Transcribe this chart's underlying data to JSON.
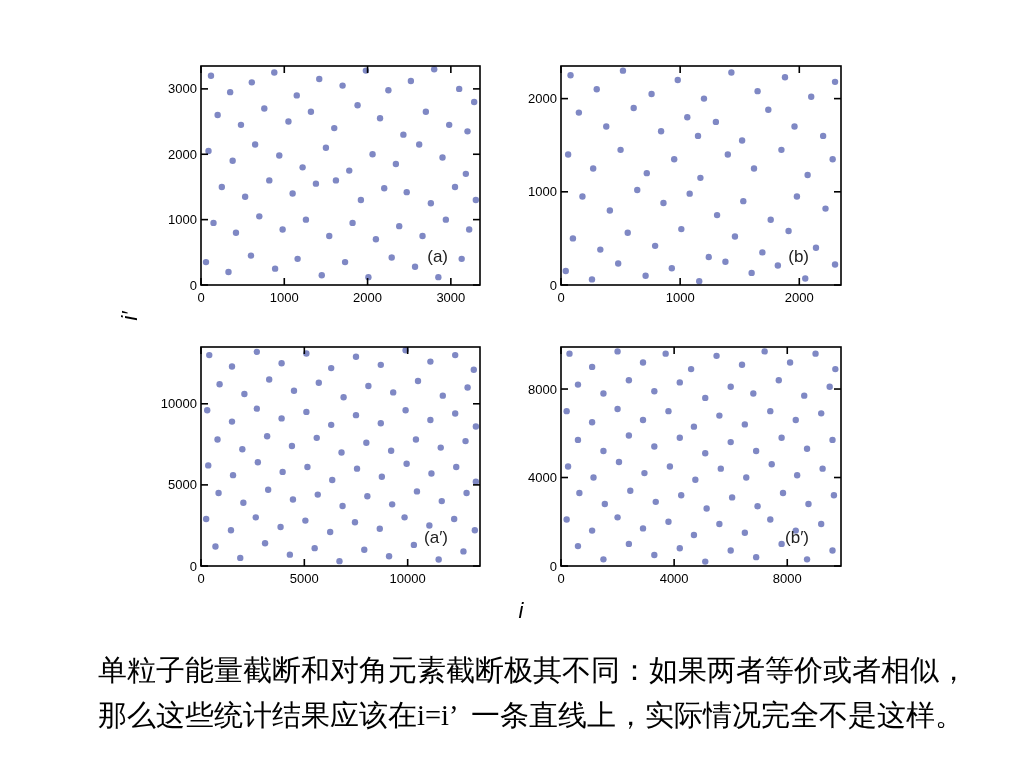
{
  "chart_data": [
    {
      "type": "scatter",
      "title": "(a)",
      "ylabel": "i′",
      "color": "#7f88c4",
      "marker": "circle",
      "xlim": [
        0,
        3350
      ],
      "ylim": [
        0,
        3350
      ],
      "xticks": [
        0,
        1000,
        2000,
        3000
      ],
      "yticks": [
        0,
        1000,
        2000,
        3000
      ],
      "x": [
        120,
        350,
        610,
        880,
        1150,
        1420,
        1700,
        1980,
        2250,
        2520,
        2800,
        3100,
        3280,
        200,
        480,
        760,
        1050,
        1320,
        1600,
        1880,
        2150,
        2430,
        2700,
        2980,
        3200,
        90,
        380,
        650,
        940,
        1220,
        1500,
        1780,
        2060,
        2340,
        2620,
        2900,
        3180,
        250,
        530,
        820,
        1100,
        1380,
        1620,
        1920,
        2200,
        2470,
        2760,
        3050,
        3300,
        150,
        420,
        700,
        980,
        1260,
        1540,
        1820,
        2100,
        2380,
        2660,
        2940,
        3220,
        60,
        330,
        600,
        890,
        1160,
        1450,
        1730,
        2010,
        2290,
        2570,
        2850,
        3130
      ],
      "values": [
        3200,
        2950,
        3100,
        3250,
        2900,
        3150,
        3050,
        3280,
        2980,
        3120,
        3300,
        3000,
        2800,
        2600,
        2450,
        2700,
        2500,
        2650,
        2400,
        2750,
        2550,
        2300,
        2650,
        2450,
        2350,
        2050,
        1900,
        2150,
        1980,
        1800,
        2100,
        1750,
        2000,
        1850,
        2150,
        1950,
        1700,
        1500,
        1350,
        1600,
        1400,
        1550,
        1600,
        1300,
        1480,
        1420,
        1250,
        1500,
        1300,
        950,
        800,
        1050,
        850,
        1000,
        750,
        950,
        700,
        900,
        750,
        1000,
        850,
        350,
        200,
        450,
        250,
        400,
        150,
        350,
        120,
        420,
        280,
        120,
        400
      ]
    },
    {
      "type": "scatter",
      "title": "(b)",
      "color": "#7f88c4",
      "marker": "circle",
      "xlim": [
        0,
        2350
      ],
      "ylim": [
        0,
        2350
      ],
      "xticks": [
        0,
        1000,
        2000
      ],
      "yticks": [
        0,
        1000,
        2000
      ],
      "x": [
        80,
        300,
        520,
        760,
        980,
        1200,
        1430,
        1650,
        1880,
        2100,
        2300,
        150,
        380,
        610,
        840,
        1060,
        1150,
        1300,
        1520,
        1740,
        1960,
        2200,
        60,
        270,
        500,
        720,
        950,
        1170,
        1400,
        1620,
        1850,
        2070,
        2280,
        180,
        410,
        640,
        860,
        1080,
        1310,
        1530,
        1760,
        1980,
        2220,
        100,
        330,
        560,
        790,
        1010,
        1240,
        1460,
        1690,
        1910,
        2140,
        40,
        260,
        480,
        710,
        930,
        1160,
        1380,
        1600,
        1820,
        2050,
        2300
      ],
      "values": [
        2250,
        2100,
        2300,
        2050,
        2200,
        2000,
        2280,
        2080,
        2230,
        2020,
        2180,
        1850,
        1700,
        1900,
        1650,
        1800,
        1600,
        1750,
        1550,
        1880,
        1700,
        1600,
        1400,
        1250,
        1450,
        1200,
        1350,
        1150,
        1400,
        1250,
        1450,
        1180,
        1350,
        950,
        800,
        1020,
        880,
        980,
        750,
        900,
        700,
        950,
        820,
        500,
        380,
        560,
        420,
        600,
        300,
        520,
        350,
        580,
        400,
        150,
        60,
        230,
        100,
        180,
        40,
        250,
        130,
        210,
        70,
        220
      ]
    },
    {
      "type": "scatter",
      "title": "(a′)",
      "xlabel": "i",
      "color": "#7f88c4",
      "marker": "circle",
      "xlim": [
        0,
        13500
      ],
      "ylim": [
        0,
        13500
      ],
      "xticks": [
        0,
        5000,
        10000
      ],
      "yticks": [
        0,
        5000,
        10000
      ],
      "x": [
        400,
        1500,
        2700,
        3900,
        5100,
        6300,
        7500,
        8700,
        9900,
        11100,
        12300,
        13200,
        900,
        2100,
        3300,
        4500,
        5700,
        6900,
        8100,
        9300,
        10500,
        11700,
        12900,
        300,
        1500,
        2700,
        3900,
        5100,
        6300,
        7500,
        8700,
        9900,
        11100,
        12300,
        13300,
        800,
        2000,
        3200,
        4400,
        5600,
        6800,
        8000,
        9200,
        10400,
        11600,
        12800,
        350,
        1550,
        2750,
        3950,
        5150,
        6350,
        7550,
        8750,
        9950,
        11150,
        12350,
        13300,
        850,
        2050,
        3250,
        4450,
        5650,
        6850,
        8050,
        9250,
        10450,
        11650,
        12850,
        250,
        1450,
        2650,
        3850,
        5050,
        6250,
        7450,
        8650,
        9850,
        11050,
        12250,
        13250,
        700,
        1900,
        3100,
        4300,
        5500,
        6700,
        7900,
        9100,
        10300,
        11500,
        12700
      ],
      "values": [
        13000,
        12300,
        13200,
        12500,
        13100,
        12200,
        12900,
        12400,
        13300,
        12600,
        13000,
        12100,
        11200,
        10600,
        11500,
        10800,
        11300,
        10400,
        11100,
        10700,
        11400,
        10500,
        11000,
        9600,
        8900,
        9700,
        9100,
        9500,
        8700,
        9300,
        8800,
        9600,
        9000,
        9400,
        8600,
        7800,
        7200,
        8000,
        7400,
        7900,
        7000,
        7600,
        7100,
        7800,
        7300,
        7700,
        6200,
        5600,
        6400,
        5800,
        6100,
        5300,
        6000,
        5500,
        6300,
        5700,
        6100,
        5200,
        4500,
        3900,
        4700,
        4100,
        4400,
        3700,
        4300,
        3800,
        4600,
        4000,
        4500,
        2900,
        2200,
        3000,
        2400,
        2800,
        2100,
        2700,
        2300,
        3000,
        2500,
        2900,
        2200,
        1200,
        500,
        1400,
        700,
        1100,
        300,
        1000,
        600,
        1300,
        400,
        900
      ]
    },
    {
      "type": "scatter",
      "title": "(b′)",
      "color": "#7f88c4",
      "marker": "circle",
      "xlim": [
        0,
        9900
      ],
      "ylim": [
        0,
        9900
      ],
      "xticks": [
        0,
        4000,
        8000
      ],
      "yticks": [
        0,
        4000,
        8000
      ],
      "x": [
        300,
        1100,
        2000,
        2900,
        3700,
        4600,
        5500,
        6400,
        7200,
        8100,
        9000,
        9700,
        600,
        1500,
        2400,
        3300,
        4200,
        5100,
        6000,
        6800,
        7700,
        8600,
        9500,
        200,
        1100,
        2000,
        2900,
        3800,
        4700,
        5600,
        6500,
        7400,
        8300,
        9200,
        600,
        1500,
        2400,
        3300,
        4200,
        5100,
        6000,
        6900,
        7800,
        8700,
        9600,
        250,
        1150,
        2050,
        2950,
        3850,
        4750,
        5650,
        6550,
        7450,
        8350,
        9250,
        650,
        1550,
        2450,
        3350,
        4250,
        5150,
        6050,
        6950,
        7850,
        8750,
        9650,
        200,
        1100,
        2000,
        2900,
        3800,
        4700,
        5600,
        6500,
        7400,
        8300,
        9200,
        600,
        1500,
        2400,
        3300,
        4200,
        5100,
        6000,
        6900,
        7800,
        8700,
        9600
      ],
      "values": [
        9600,
        9000,
        9700,
        9200,
        9600,
        8900,
        9500,
        9100,
        9700,
        9200,
        9600,
        8900,
        8200,
        7800,
        8400,
        7900,
        8300,
        7600,
        8100,
        7800,
        8400,
        7700,
        8100,
        7000,
        6500,
        7100,
        6600,
        7000,
        6300,
        6800,
        6400,
        7000,
        6600,
        6900,
        5700,
        5200,
        5900,
        5400,
        5800,
        5100,
        5600,
        5200,
        5800,
        5300,
        5700,
        4500,
        4000,
        4700,
        4200,
        4500,
        3900,
        4400,
        4000,
        4600,
        4100,
        4400,
        3300,
        2800,
        3400,
        2900,
        3200,
        2600,
        3100,
        2700,
        3300,
        2800,
        3200,
        2100,
        1600,
        2200,
        1700,
        2000,
        1400,
        1900,
        1500,
        2100,
        1600,
        1900,
        900,
        300,
        1000,
        500,
        800,
        200,
        700,
        400,
        1000,
        300,
        700
      ],
      "annotations": [
        "单粒子能量截断和对角元素截断极其不同：如果两者等价或者相似，那么这些统计结果应该在i=i’  一条直线上，实际情况完全不是这样。"
      ]
    }
  ]
}
